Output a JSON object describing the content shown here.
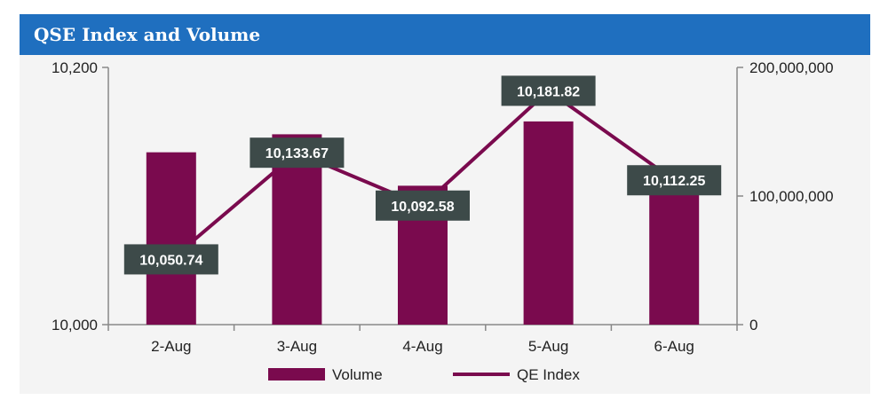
{
  "header": {
    "title": "QSE Index and Volume"
  },
  "colors": {
    "header_bg": "#1f6fbf",
    "series": "#7a0a4e",
    "label_bg": "#3d4a49",
    "axis": "#888888",
    "panel_bg": "#f4f4f4"
  },
  "chart_data": {
    "type": "bar",
    "title": "QSE Index and Volume",
    "categories": [
      "2-Aug",
      "3-Aug",
      "4-Aug",
      "5-Aug",
      "6-Aug"
    ],
    "series": [
      {
        "name": "Volume",
        "type": "bar",
        "axis": "right",
        "values": [
          134000000,
          148000000,
          108000000,
          158000000,
          112000000
        ]
      },
      {
        "name": "QE Index",
        "type": "line",
        "axis": "left",
        "values": [
          10050.74,
          10133.67,
          10092.58,
          10181.82,
          10112.25
        ],
        "data_labels": [
          "10,050.74",
          "10,133.67",
          "10,092.58",
          "10,181.82",
          "10,112.25"
        ]
      }
    ],
    "y_left": {
      "min": 10000,
      "max": 10200,
      "tick_labels": [
        "10,000",
        "10,200"
      ],
      "ticks": [
        10000,
        10200
      ]
    },
    "y_right": {
      "min": 0,
      "max": 200000000,
      "tick_labels": [
        "0",
        "100,000,000",
        "200,000,000"
      ],
      "ticks": [
        0,
        100000000,
        200000000
      ]
    },
    "legend": {
      "position": "bottom",
      "entries": [
        {
          "label": "Volume",
          "kind": "bar"
        },
        {
          "label": "QE Index",
          "kind": "line"
        }
      ]
    },
    "grid": false
  }
}
